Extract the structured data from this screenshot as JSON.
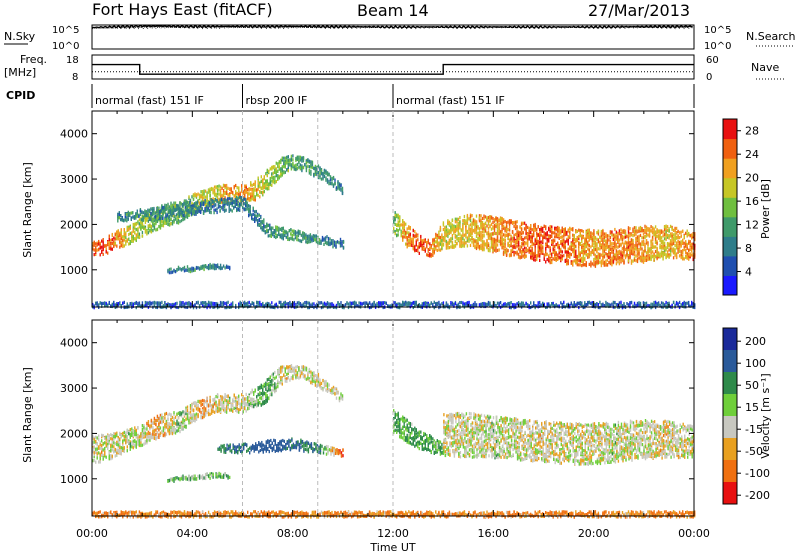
{
  "header": {
    "title": "Fort Hays East (fitACF)",
    "beam": "Beam 14",
    "date": "27/Mar/2013"
  },
  "top_strips": {
    "nsky_label": "N.Sky",
    "nsky_ticks": [
      "10^5",
      "10^0"
    ],
    "nsearch_label": "N.Search",
    "nsearch_ticks": [
      "10^5",
      "10^0"
    ],
    "freq_label": "Freq.",
    "freq_unit": "[MHz]",
    "freq_ticks": [
      "18",
      "8"
    ],
    "nave_label": "Nave",
    "nave_ticks": [
      "60",
      "0"
    ],
    "cpid_label": "CPID",
    "cpid_segments": [
      {
        "label": "normal (fast) 151 IF",
        "start": 0,
        "end": 6
      },
      {
        "label": "rbsp 200 IF",
        "start": 6,
        "end": 12
      },
      {
        "label": "normal (fast) 151 IF",
        "start": 12,
        "end": 24
      }
    ]
  },
  "axes": {
    "x_ticks": [
      "00:00",
      "04:00",
      "08:00",
      "12:00",
      "16:00",
      "20:00",
      "00:00"
    ],
    "xlabel": "Time UT",
    "ylabel_power": "Slant Range [km]",
    "ylabel_velocity": "Slant Range [km]",
    "y_ticks": [
      "1000",
      "2000",
      "3000",
      "4000"
    ]
  },
  "colorbars": {
    "power": {
      "label": "Power [dB]",
      "ticks": [
        "4",
        "8",
        "12",
        "16",
        "20",
        "24",
        "28"
      ],
      "colors": [
        "#1a1aff",
        "#1f4fb0",
        "#2e7d8a",
        "#3f9a6a",
        "#6fbf3f",
        "#c6c625",
        "#f0a020",
        "#f06010",
        "#e81010"
      ]
    },
    "velocity": {
      "label": "Velocity [m s⁻¹]",
      "ticks": [
        "200",
        "100",
        "50",
        "15",
        "-15",
        "-50",
        "-100",
        "-200"
      ],
      "colors": [
        "#1a2a9a",
        "#2a5a9a",
        "#2e8a4a",
        "#6fcf3a",
        "#c8c8c0",
        "#e8a020",
        "#f07010",
        "#e81010"
      ]
    }
  },
  "chart_data": [
    {
      "type": "line",
      "panel": "N.Sky / N.Search",
      "x_range": [
        0,
        24
      ],
      "series": [
        {
          "name": "N.Sky",
          "x": [
            0,
            2,
            4,
            8,
            12,
            16,
            20,
            24
          ],
          "values": [
            30000.0,
            60000.0,
            50000.0,
            50000.0,
            40000.0,
            40000.0,
            40000.0,
            50000.0
          ]
        },
        {
          "name": "N.Search",
          "x": [
            0,
            2,
            4,
            8,
            12,
            16,
            20,
            24
          ],
          "values": [
            20000.0,
            30000.0,
            30000.0,
            30000.0,
            30000.0,
            30000.0,
            30000.0,
            30000.0
          ]
        }
      ]
    },
    {
      "type": "line",
      "panel": "Freq. / Nave",
      "x_range": [
        0,
        24
      ],
      "series": [
        {
          "name": "Freq.",
          "x": [
            0,
            1.9,
            1.9,
            14,
            14,
            24
          ],
          "values": [
            14,
            14,
            10,
            10,
            14,
            14
          ]
        },
        {
          "name": "Nave",
          "x": [
            0,
            24
          ],
          "values": [
            18,
            18
          ]
        }
      ]
    },
    {
      "type": "heatmap",
      "panel": "Power",
      "xlabel": "Time UT",
      "ylabel": "Slant Range [km]",
      "x_range": [
        0,
        24
      ],
      "ylim": [
        180,
        4500
      ],
      "colorbar_label": "Power [dB]",
      "value_range": [
        0,
        30
      ],
      "band_sets": [
        {
          "x": [
            0,
            0.5,
            1,
            1.5,
            2,
            2.5,
            3,
            3.5,
            4,
            4.5,
            5,
            5.5,
            6,
            6.5,
            7,
            7.5,
            8,
            8.5,
            9,
            9.5,
            10
          ],
          "center": [
            1500,
            1550,
            1700,
            1800,
            2000,
            2150,
            2250,
            2300,
            2500,
            2600,
            2700,
            2700,
            2700,
            2800,
            3000,
            3300,
            3400,
            3350,
            3200,
            3000,
            2800
          ],
          "width": [
            300,
            350,
            400,
            400,
            450,
            500,
            500,
            450,
            450,
            400,
            400,
            400,
            400,
            450,
            500,
            400,
            300,
            300,
            300,
            250,
            200
          ],
          "power": [
            24,
            26,
            22,
            18,
            16,
            14,
            14,
            14,
            16,
            18,
            20,
            22,
            24,
            20,
            16,
            14,
            12,
            12,
            10,
            10,
            8
          ]
        },
        {
          "x": [
            1,
            2,
            3,
            4,
            5,
            6,
            7,
            8,
            9,
            10
          ],
          "center": [
            2200,
            2250,
            2300,
            2400,
            2450,
            2500,
            1900,
            1800,
            1700,
            1600
          ],
          "width": [
            200,
            250,
            250,
            300,
            300,
            300,
            250,
            250,
            200,
            200
          ],
          "power": [
            10,
            10,
            9,
            9,
            8,
            8,
            10,
            12,
            10,
            8
          ]
        },
        {
          "x": [
            12,
            12.5,
            13,
            13.5,
            14,
            15,
            16,
            17,
            18,
            19,
            20,
            21,
            22,
            23,
            24
          ],
          "center": [
            2100,
            1800,
            1600,
            1500,
            1800,
            1900,
            1800,
            1700,
            1600,
            1550,
            1500,
            1550,
            1600,
            1650,
            1550
          ],
          "width": [
            500,
            500,
            400,
            350,
            600,
            700,
            800,
            800,
            800,
            800,
            800,
            800,
            800,
            700,
            600
          ],
          "power": [
            14,
            22,
            26,
            24,
            18,
            20,
            22,
            24,
            26,
            24,
            22,
            24,
            22,
            20,
            24
          ]
        },
        {
          "x": [
            3,
            3.5,
            4,
            4.5,
            5,
            5.5
          ],
          "center": [
            1000,
            1050,
            1050,
            1100,
            1100,
            1100
          ],
          "width": [
            100,
            100,
            120,
            120,
            120,
            100
          ],
          "power": [
            8,
            9,
            10,
            10,
            9,
            8
          ]
        },
        {
          "x": [
            0,
            24
          ],
          "center": [
            260,
            260
          ],
          "width": [
            120,
            120
          ],
          "power": [
            6,
            6
          ]
        }
      ]
    },
    {
      "type": "heatmap",
      "panel": "Velocity",
      "xlabel": "Time UT",
      "ylabel": "Slant Range [km]",
      "x_range": [
        0,
        24
      ],
      "ylim": [
        180,
        4500
      ],
      "colorbar_label": "Velocity [m s⁻¹]",
      "value_range": [
        -250,
        250
      ],
      "band_sets": [
        {
          "x": [
            0,
            0.5,
            1,
            1.5,
            2,
            2.5,
            3,
            3.5,
            4,
            4.5,
            5,
            5.5,
            6,
            6.5,
            7,
            7.5,
            8,
            8.5,
            9,
            9.5,
            10
          ],
          "center": [
            1700,
            1700,
            1800,
            1900,
            2000,
            2150,
            2250,
            2300,
            2500,
            2600,
            2700,
            2700,
            2700,
            2800,
            3000,
            3300,
            3400,
            3350,
            3200,
            3000,
            2800
          ],
          "width": [
            600,
            600,
            500,
            450,
            450,
            500,
            500,
            450,
            450,
            400,
            400,
            400,
            400,
            450,
            500,
            400,
            300,
            300,
            300,
            250,
            200
          ],
          "vel": [
            0,
            -5,
            0,
            5,
            0,
            -20,
            0,
            10,
            0,
            -30,
            0,
            5,
            0,
            20,
            40,
            0,
            -10,
            0,
            5,
            0,
            0
          ]
        },
        {
          "x": [
            5,
            6,
            7,
            8,
            9,
            10
          ],
          "center": [
            1700,
            1700,
            1750,
            1800,
            1700,
            1600
          ],
          "width": [
            150,
            200,
            250,
            250,
            200,
            150
          ],
          "vel": [
            60,
            80,
            120,
            90,
            60,
            -80
          ]
        },
        {
          "x": [
            12,
            12.5,
            13,
            13.5,
            14
          ],
          "center": [
            2300,
            2100,
            1900,
            1800,
            1700
          ],
          "width": [
            500,
            500,
            400,
            400,
            300
          ],
          "vel": [
            35,
            40,
            45,
            40,
            30
          ]
        },
        {
          "x": [
            14,
            15,
            16,
            17,
            18,
            19,
            20,
            21,
            22,
            23,
            24
          ],
          "center": [
            2000,
            2000,
            1950,
            1900,
            1850,
            1800,
            1800,
            1850,
            1900,
            1900,
            1850
          ],
          "width": [
            900,
            1000,
            900,
            900,
            900,
            900,
            900,
            900,
            850,
            800,
            700
          ],
          "vel": [
            0,
            0,
            5,
            0,
            -5,
            0,
            0,
            5,
            0,
            -5,
            0
          ]
        },
        {
          "x": [
            3,
            3.5,
            4,
            4.5,
            5,
            5.5
          ],
          "center": [
            1000,
            1050,
            1050,
            1100,
            1100,
            1100
          ],
          "width": [
            100,
            100,
            120,
            120,
            120,
            100
          ],
          "vel": [
            30,
            30,
            25,
            25,
            30,
            30
          ]
        },
        {
          "x": [
            0,
            24
          ],
          "center": [
            250,
            250
          ],
          "width": [
            120,
            120
          ],
          "vel": [
            -40,
            -40
          ]
        }
      ]
    }
  ]
}
